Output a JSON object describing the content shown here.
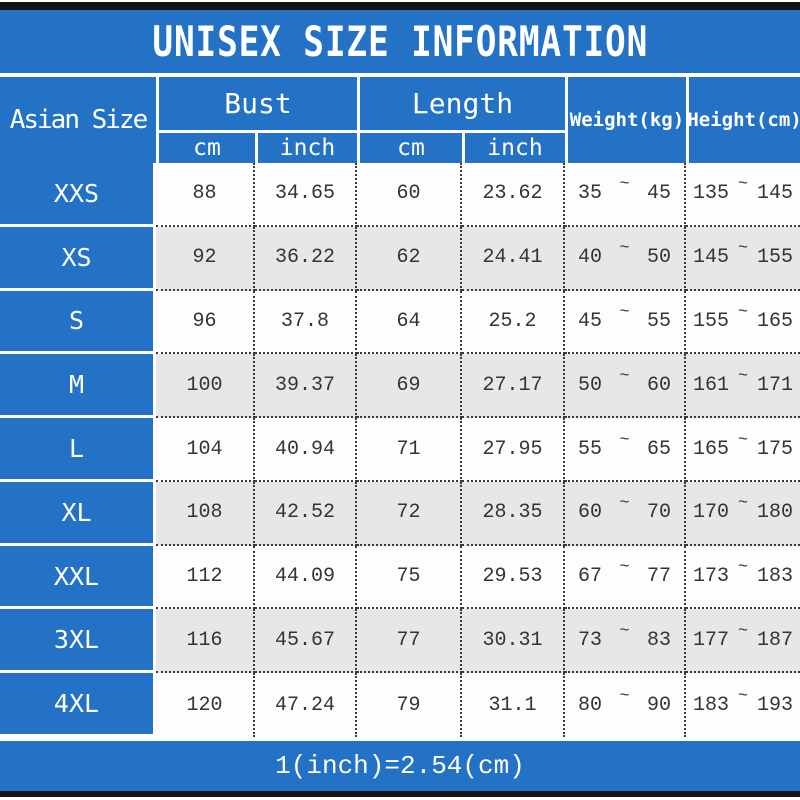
{
  "title": "UNISEX SIZE INFORMATION",
  "tilde": "~",
  "header": {
    "asian_size": "Asian Size",
    "bust": "Bust",
    "length": "Length",
    "bust_cm": "cm",
    "bust_inch": "inch",
    "length_cm": "cm",
    "length_inch": "inch",
    "weight": "Weight(kg)",
    "height": "Height(cm)"
  },
  "footer": {
    "note": "1(inch)=2.54(cm)"
  },
  "colors": {
    "accent_blue": "#2472c5",
    "row_alt_gray": "#e9e6e7",
    "bar_black": "#141414",
    "header_text": "#ffffff",
    "data_text": "#343434"
  },
  "chart_data": {
    "type": "table",
    "title": "UNISEX SIZE INFORMATION",
    "columns": [
      "Asian Size",
      "Bust cm",
      "Bust inch",
      "Length cm",
      "Length inch",
      "Weight(kg)",
      "Height(cm)"
    ],
    "conversion_note": "1(inch)=2.54(cm)",
    "rows": [
      {
        "size": "XXS",
        "bust_cm": "88",
        "bust_inch": "34.65",
        "length_cm": "60",
        "length_inch": "23.62",
        "weight_min": "35",
        "weight_max": "45",
        "height_min": "135",
        "height_max": "145"
      },
      {
        "size": "XS",
        "bust_cm": "92",
        "bust_inch": "36.22",
        "length_cm": "62",
        "length_inch": "24.41",
        "weight_min": "40",
        "weight_max": "50",
        "height_min": "145",
        "height_max": "155"
      },
      {
        "size": "S",
        "bust_cm": "96",
        "bust_inch": "37.8",
        "length_cm": "64",
        "length_inch": "25.2",
        "weight_min": "45",
        "weight_max": "55",
        "height_min": "155",
        "height_max": "165"
      },
      {
        "size": "M",
        "bust_cm": "100",
        "bust_inch": "39.37",
        "length_cm": "69",
        "length_inch": "27.17",
        "weight_min": "50",
        "weight_max": "60",
        "height_min": "161",
        "height_max": "171"
      },
      {
        "size": "L",
        "bust_cm": "104",
        "bust_inch": "40.94",
        "length_cm": "71",
        "length_inch": "27.95",
        "weight_min": "55",
        "weight_max": "65",
        "height_min": "165",
        "height_max": "175"
      },
      {
        "size": "XL",
        "bust_cm": "108",
        "bust_inch": "42.52",
        "length_cm": "72",
        "length_inch": "28.35",
        "weight_min": "60",
        "weight_max": "70",
        "height_min": "170",
        "height_max": "180"
      },
      {
        "size": "XXL",
        "bust_cm": "112",
        "bust_inch": "44.09",
        "length_cm": "75",
        "length_inch": "29.53",
        "weight_min": "67",
        "weight_max": "77",
        "height_min": "173",
        "height_max": "183"
      },
      {
        "size": "3XL",
        "bust_cm": "116",
        "bust_inch": "45.67",
        "length_cm": "77",
        "length_inch": "30.31",
        "weight_min": "73",
        "weight_max": "83",
        "height_min": "177",
        "height_max": "187"
      },
      {
        "size": "4XL",
        "bust_cm": "120",
        "bust_inch": "47.24",
        "length_cm": "79",
        "length_inch": "31.1",
        "weight_min": "80",
        "weight_max": "90",
        "height_min": "183",
        "height_max": "193"
      }
    ]
  }
}
